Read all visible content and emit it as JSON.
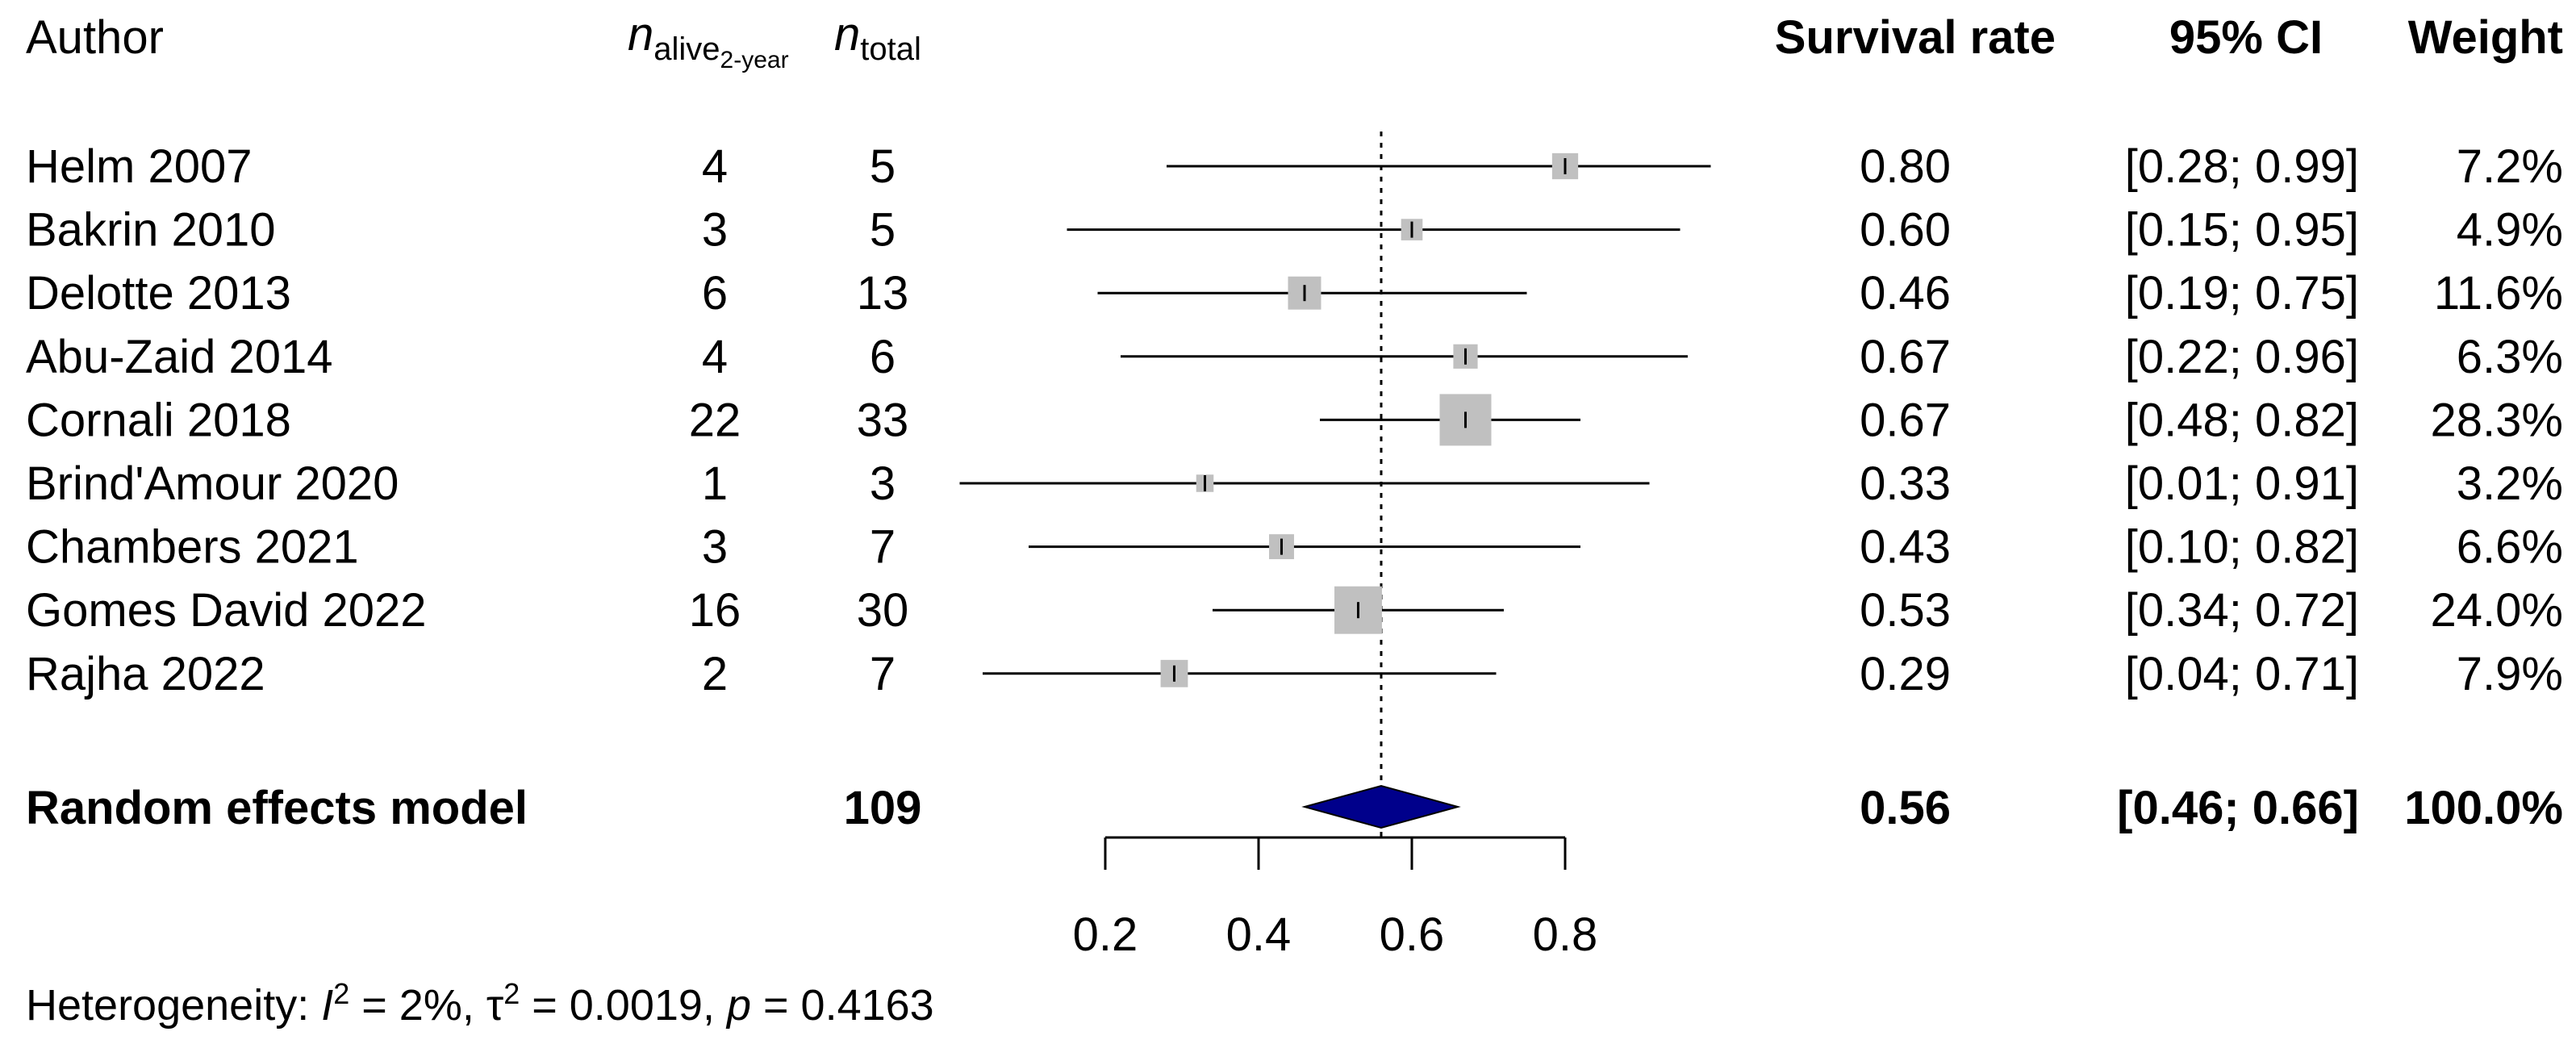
{
  "chart_data": {
    "type": "forest",
    "columns": {
      "author": "Author",
      "events_main": "n",
      "events_sub": "alive",
      "events_subsub": "2-year",
      "total_main": "n",
      "total_sub": "total",
      "estimate": "Survival rate",
      "ci": "95% CI",
      "weight": "Weight"
    },
    "studies": [
      {
        "author": "Helm 2007",
        "events": "4",
        "total": "5",
        "estimate": 0.8,
        "lower": 0.28,
        "upper": 0.99,
        "weight": 7.2,
        "estimate_label": "0.80",
        "ci_label": "[0.28; 0.99]",
        "weight_label": "7.2%"
      },
      {
        "author": "Bakrin 2010",
        "events": "3",
        "total": "5",
        "estimate": 0.6,
        "lower": 0.15,
        "upper": 0.95,
        "weight": 4.9,
        "estimate_label": "0.60",
        "ci_label": "[0.15; 0.95]",
        "weight_label": "4.9%"
      },
      {
        "author": "Delotte 2013",
        "events": "6",
        "total": "13",
        "estimate": 0.46,
        "lower": 0.19,
        "upper": 0.75,
        "weight": 11.6,
        "estimate_label": "0.46",
        "ci_label": "[0.19; 0.75]",
        "weight_label": "11.6%"
      },
      {
        "author": "Abu-Zaid 2014",
        "events": "4",
        "total": "6",
        "estimate": 0.67,
        "lower": 0.22,
        "upper": 0.96,
        "weight": 6.3,
        "estimate_label": "0.67",
        "ci_label": "[0.22; 0.96]",
        "weight_label": "6.3%"
      },
      {
        "author": "Cornali 2018",
        "events": "22",
        "total": "33",
        "estimate": 0.67,
        "lower": 0.48,
        "upper": 0.82,
        "weight": 28.3,
        "estimate_label": "0.67",
        "ci_label": "[0.48; 0.82]",
        "weight_label": "28.3%"
      },
      {
        "author": "Brind'Amour 2020",
        "events": "1",
        "total": "3",
        "estimate": 0.33,
        "lower": 0.01,
        "upper": 0.91,
        "weight": 3.2,
        "estimate_label": "0.33",
        "ci_label": "[0.01; 0.91]",
        "weight_label": "3.2%"
      },
      {
        "author": "Chambers 2021",
        "events": "3",
        "total": "7",
        "estimate": 0.43,
        "lower": 0.1,
        "upper": 0.82,
        "weight": 6.6,
        "estimate_label": "0.43",
        "ci_label": "[0.10; 0.82]",
        "weight_label": "6.6%"
      },
      {
        "author": "Gomes David 2022",
        "events": "16",
        "total": "30",
        "estimate": 0.53,
        "lower": 0.34,
        "upper": 0.72,
        "weight": 24.0,
        "estimate_label": "0.53",
        "ci_label": "[0.34; 0.72]",
        "weight_label": "24.0%"
      },
      {
        "author": "Rajha 2022",
        "events": "2",
        "total": "7",
        "estimate": 0.29,
        "lower": 0.04,
        "upper": 0.71,
        "weight": 7.9,
        "estimate_label": "0.29",
        "ci_label": "[0.04; 0.71]",
        "weight_label": "7.9%"
      }
    ],
    "pooled": {
      "label": "Random effects model",
      "total": "109",
      "estimate": 0.56,
      "lower": 0.46,
      "upper": 0.66,
      "estimate_label": "0.56",
      "ci_label": "[0.46; 0.66]",
      "weight_label": "100.0%"
    },
    "x_axis": {
      "range": [
        0.2,
        0.8
      ],
      "ticks": [
        0.2,
        0.4,
        0.6,
        0.8
      ],
      "tick_labels": [
        "0.2",
        "0.4",
        "0.6",
        "0.8"
      ]
    },
    "reference_line": 0.56,
    "heterogeneity": {
      "prefix": "Heterogeneity: ",
      "i2_symbol": "I",
      "i2_value": " = 2%, ",
      "tau2_symbol": "τ",
      "tau2_value": " = 0.0019, ",
      "p_symbol": "p",
      "p_value": " = 0.4163",
      "superscript": "2"
    }
  },
  "colors": {
    "square": "#c0c0c0",
    "diamond": "#00008b",
    "line": "#000000"
  }
}
